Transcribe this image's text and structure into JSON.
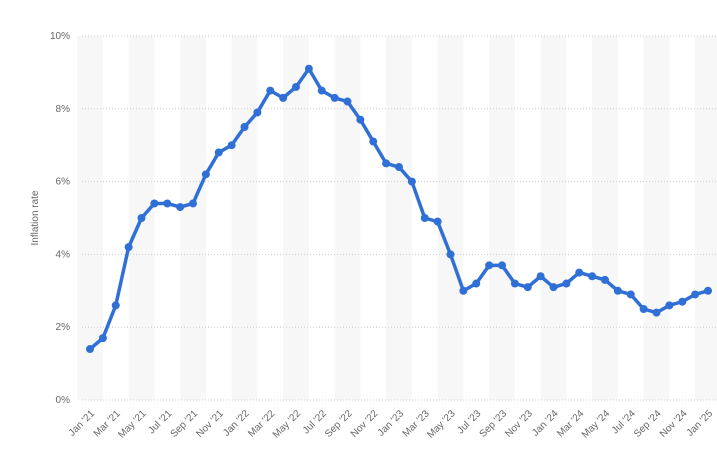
{
  "chart_data": {
    "type": "line",
    "ylabel": "Inflation rate",
    "ylim": [
      0,
      10
    ],
    "y_ticks": [
      0,
      2,
      4,
      6,
      8,
      10
    ],
    "y_tick_labels": [
      "0%",
      "2%",
      "4%",
      "6%",
      "8%",
      "10%"
    ],
    "x_tick_labels": [
      "Jan '21",
      "Mar '21",
      "May '21",
      "Jul '21",
      "Sep '21",
      "Nov '21",
      "Jan '22",
      "Mar '22",
      "May '22",
      "Jul '22",
      "Sep '22",
      "Nov '22",
      "Jan '23",
      "Mar '23",
      "May '23",
      "Jul '23",
      "Sep '23",
      "Nov '23",
      "Jan '24",
      "Mar '24",
      "May '24",
      "Jul '24",
      "Sep '24",
      "Nov '24",
      "Jan '25"
    ],
    "x": [
      "Jan 2021",
      "Feb 2021",
      "Mar 2021",
      "Apr 2021",
      "May 2021",
      "Jun 2021",
      "Jul 2021",
      "Aug 2021",
      "Sep 2021",
      "Oct 2021",
      "Nov 2021",
      "Dec 2021",
      "Jan 2022",
      "Feb 2022",
      "Mar 2022",
      "Apr 2022",
      "May 2022",
      "Jun 2022",
      "Jul 2022",
      "Aug 2022",
      "Sep 2022",
      "Oct 2022",
      "Nov 2022",
      "Dec 2022",
      "Jan 2023",
      "Feb 2023",
      "Mar 2023",
      "Apr 2023",
      "May 2023",
      "Jun 2023",
      "Jul 2023",
      "Aug 2023",
      "Sep 2023",
      "Oct 2023",
      "Nov 2023",
      "Dec 2023",
      "Jan 2024",
      "Feb 2024",
      "Mar 2024",
      "Apr 2024",
      "May 2024",
      "Jun 2024",
      "Jul 2024",
      "Aug 2024",
      "Sep 2024",
      "Oct 2024",
      "Nov 2024",
      "Dec 2024",
      "Jan 2025"
    ],
    "series": [
      {
        "values": [
          1.4,
          1.7,
          2.6,
          4.2,
          5.0,
          5.4,
          5.4,
          5.3,
          5.4,
          6.2,
          6.8,
          7.0,
          7.5,
          7.9,
          8.5,
          8.3,
          8.6,
          9.1,
          8.5,
          8.3,
          8.2,
          7.7,
          7.1,
          6.5,
          6.4,
          6.0,
          5.0,
          4.9,
          4.0,
          3.0,
          3.2,
          3.7,
          3.7,
          3.2,
          3.1,
          3.4,
          3.1,
          3.2,
          3.5,
          3.4,
          3.3,
          3.0,
          2.9,
          2.5,
          2.4,
          2.6,
          2.7,
          2.9,
          3.0
        ],
        "color": "#2f6fd6"
      }
    ],
    "grid": true,
    "legend": "none",
    "band_color": "#f7f7f7",
    "grid_color": "#cccccc"
  }
}
